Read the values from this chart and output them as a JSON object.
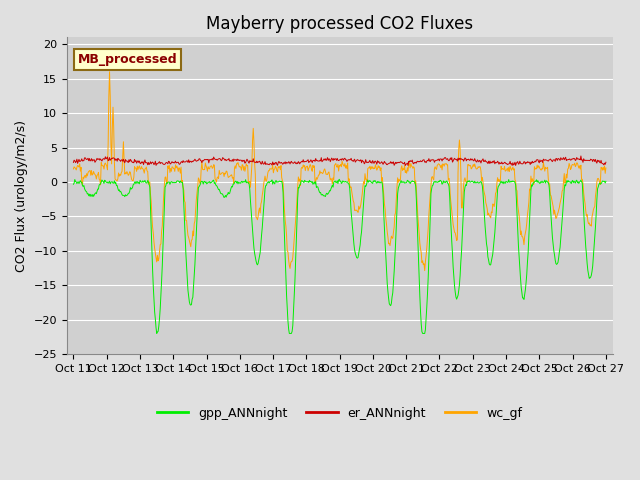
{
  "title": "Mayberry processed CO2 Fluxes",
  "ylabel": "CO2 Flux (urology/m2/s)",
  "ylim": [
    -25,
    21
  ],
  "yticks": [
    -25,
    -20,
    -15,
    -10,
    -5,
    0,
    5,
    10,
    15,
    20
  ],
  "bg_color": "#e0e0e0",
  "plot_bg_color": "#d0d0d0",
  "grid_color": "white",
  "line_colors": {
    "gpp": "#00ee00",
    "er": "#cc0000",
    "wc": "#ffa500"
  },
  "legend_labels": [
    "gpp_ANNnight",
    "er_ANNnight",
    "wc_gf"
  ],
  "annotation_text": "MB_processed",
  "annotation_color": "#8b0000",
  "annotation_bg": "#ffffcc",
  "annotation_border": "#8b6914",
  "n_days": 16,
  "n_per_day": 48,
  "x_tick_labels": [
    "Oct 11",
    "Oct 12",
    "Oct 13",
    "Oct 14",
    "Oct 15",
    "Oct 16",
    "Oct 17",
    "Oct 18",
    "Oct 19",
    "Oct 20",
    "Oct 21",
    "Oct 22",
    "Oct 23",
    "Oct 24",
    "Oct 25",
    "Oct 26",
    "Oct 27"
  ],
  "title_fontsize": 12,
  "tick_fontsize": 8,
  "ylabel_fontsize": 9
}
